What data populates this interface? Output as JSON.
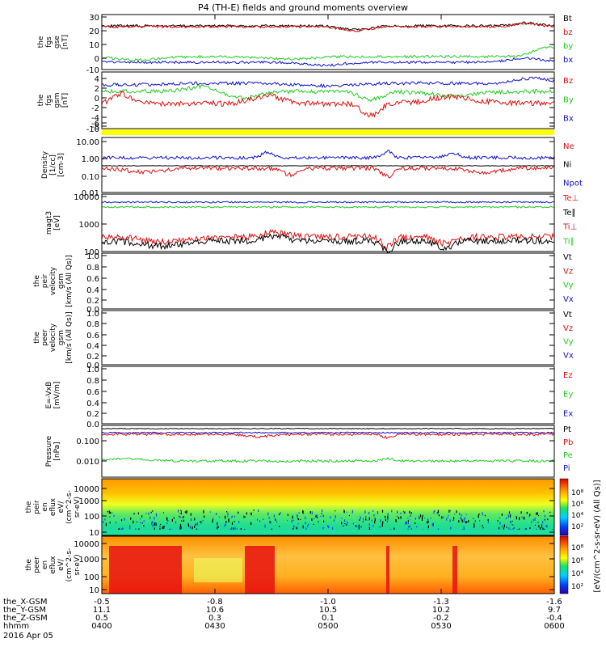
{
  "title": "P4 (TH-E) fields and ground moments overview",
  "colors": {
    "black": "#000000",
    "red": "#dd1111",
    "green": "#22cc22",
    "blue": "#1111cc",
    "yellow": "#ffff00"
  },
  "panels": [
    {
      "id": "fgs-gse",
      "ylabel": [
        "the",
        "fgs",
        "gse",
        "[nT]"
      ],
      "ticks": [
        "30",
        "20",
        "10",
        "0",
        "-10"
      ],
      "legend": [
        {
          "t": "Bt",
          "c": "black"
        },
        {
          "t": "bz",
          "c": "red"
        },
        {
          "t": "by",
          "c": "green"
        },
        {
          "t": "bx",
          "c": "blue"
        }
      ]
    },
    {
      "id": "fgs-gsm",
      "ylabel": [
        "the",
        "fgs",
        "gsm",
        "[nT]"
      ],
      "ticks": [
        "4",
        "2",
        "0",
        "-2",
        "-4",
        "-6",
        "-8",
        "-10"
      ],
      "legend": [
        {
          "t": "Bz",
          "c": "red"
        },
        {
          "t": "By",
          "c": "green"
        },
        {
          "t": "Bx",
          "c": "blue"
        }
      ]
    },
    {
      "id": "density",
      "ylabel": [
        "Density",
        "[1/cc]",
        "[cm-3]"
      ],
      "ticks": [
        "10.00",
        "1.00",
        "0.10",
        "0.01"
      ],
      "legend": [
        {
          "t": "Ne",
          "c": "red"
        },
        {
          "t": "Ni",
          "c": "black"
        },
        {
          "t": "Npot",
          "c": "blue"
        }
      ]
    },
    {
      "id": "temperature",
      "ylabel": [
        "magt3",
        "[eV]"
      ],
      "ticks": [
        "10000",
        "1000",
        "100"
      ],
      "legend": [
        {
          "t": "Te⊥",
          "c": "red"
        },
        {
          "t": "Te∥",
          "c": "black"
        },
        {
          "t": "Ti⊥",
          "c": "red"
        },
        {
          "t": "Ti∥",
          "c": "green"
        }
      ]
    },
    {
      "id": "peir-velocity",
      "ylabel": [
        "the",
        "peir",
        "velocity",
        "gsm",
        "[km/s (All Qs)]"
      ],
      "ticks": [
        "1.0",
        "0.8",
        "0.6",
        "0.4",
        "0.2",
        "0.0"
      ],
      "legend": [
        {
          "t": "Vt",
          "c": "black"
        },
        {
          "t": "Vz",
          "c": "red"
        },
        {
          "t": "Vy",
          "c": "green"
        },
        {
          "t": "Vx",
          "c": "blue"
        }
      ]
    },
    {
      "id": "peer-velocity",
      "ylabel": [
        "the",
        "peer",
        "velocity",
        "gsm",
        "[km/s (All Qs)]"
      ],
      "ticks": [
        "1.0",
        "0.8",
        "0.6",
        "0.4",
        "0.2",
        "0.0"
      ],
      "legend": [
        {
          "t": "Vt",
          "c": "black"
        },
        {
          "t": "Vz",
          "c": "red"
        },
        {
          "t": "Vy",
          "c": "green"
        },
        {
          "t": "Vx",
          "c": "blue"
        }
      ]
    },
    {
      "id": "e-field",
      "ylabel": [
        "E=-VxB",
        "[mV/m]"
      ],
      "ticks": [
        "1.0",
        "0.8",
        "0.6",
        "0.4",
        "0.2",
        "0.0"
      ],
      "legend": [
        {
          "t": "Ez",
          "c": "red"
        },
        {
          "t": "Ey",
          "c": "green"
        },
        {
          "t": "Ex",
          "c": "blue"
        }
      ]
    },
    {
      "id": "pressure",
      "ylabel": [
        "Pressure",
        "[nPa]"
      ],
      "ticks": [
        "0.100",
        "0.010"
      ],
      "legend": [
        {
          "t": "Pt",
          "c": "black"
        },
        {
          "t": "Pb",
          "c": "red"
        },
        {
          "t": "Pe",
          "c": "green"
        },
        {
          "t": "Pi",
          "c": "blue"
        }
      ]
    },
    {
      "id": "peir-eflux",
      "ylabel": [
        "the",
        "peir",
        "en",
        "eflux",
        "eV/",
        "(cm^2-s-",
        "sr-eV)"
      ],
      "ticks": [
        "10000",
        "1000",
        "100",
        "10"
      ]
    },
    {
      "id": "peer-eflux",
      "ylabel": [
        "the",
        "peer",
        "en",
        "eflux",
        "eV/",
        "(cm^2-s-",
        "sr-eV)"
      ],
      "ticks": [
        "10000",
        "1000",
        "100",
        "10"
      ]
    }
  ],
  "colorbar": {
    "label": "[eV/(cm^2-s-sr-eV) (All Qs)]",
    "top_ticks": [
      "10⁸",
      "10⁶",
      "10⁴",
      "10²"
    ],
    "bottom_ticks": [
      "10⁸",
      "10⁶",
      "10⁴",
      "10²"
    ]
  },
  "xaxis": {
    "row_labels": [
      "the_X-GSM",
      "the_Y-GSM",
      "the_Z-GSM",
      "hhmm"
    ],
    "date": "2016 Apr 05",
    "columns": [
      {
        "x": "-0.5",
        "y": "11.1",
        "z": "0.5",
        "t": "0400"
      },
      {
        "x": "-0.8",
        "y": "10.6",
        "z": "0.3",
        "t": "0430"
      },
      {
        "x": "-1.0",
        "y": "10.5",
        "z": "0.1",
        "t": "0500"
      },
      {
        "x": "-1.3",
        "y": "10.2",
        "z": "-0.2",
        "t": "0530"
      },
      {
        "x": "-1.6",
        "y": "9.7",
        "z": "-0.4",
        "t": "0600"
      }
    ]
  },
  "chart_data": {
    "type": "line",
    "title": "P4 (TH-E) fields and ground moments overview",
    "x_range": [
      "2016-04-05 04:00",
      "2016-04-05 06:00"
    ],
    "panels": [
      {
        "name": "fgs gse",
        "yrange": [
          -13,
          32
        ],
        "series": [
          {
            "name": "Bt",
            "approx_mean": 24
          },
          {
            "name": "bz",
            "approx_mean": 23
          },
          {
            "name": "by",
            "approx_mean": -4
          },
          {
            "name": "bx",
            "approx_mean": -1
          }
        ]
      },
      {
        "name": "fgs gsm",
        "yrange": [
          -11,
          4.5
        ],
        "series": [
          {
            "name": "Bz",
            "approx_mean": -3.5
          },
          {
            "name": "By",
            "approx_mean": -1
          },
          {
            "name": "Bx",
            "approx_mean": 1.5
          }
        ]
      },
      {
        "name": "Density",
        "yscale": "log",
        "yrange": [
          0.01,
          10
        ],
        "series": [
          {
            "name": "Ne",
            "approx_mean": 0.25
          },
          {
            "name": "Ni",
            "approx_mean": 0.33
          },
          {
            "name": "Npot",
            "approx_mean": 1.5
          }
        ]
      },
      {
        "name": "magt3",
        "yscale": "log",
        "yrange": [
          100,
          10000
        ],
        "series": [
          {
            "name": "Te⊥",
            "approx_mean": 7000
          },
          {
            "name": "Ti∥",
            "approx_mean": 5000
          },
          {
            "name": "Ti⊥",
            "approx_mean": 350
          },
          {
            "name": "Te∥",
            "approx_mean": 250
          }
        ]
      },
      {
        "name": "Pressure",
        "yscale": "log",
        "yrange": [
          0.003,
          0.4
        ],
        "series": [
          {
            "name": "Pt",
            "approx_mean": 0.28
          },
          {
            "name": "Pb",
            "approx_mean": 0.22
          },
          {
            "name": "Pi",
            "approx_mean": 0.2
          },
          {
            "name": "Pe",
            "approx_mean": 0.009
          }
        ]
      }
    ]
  }
}
